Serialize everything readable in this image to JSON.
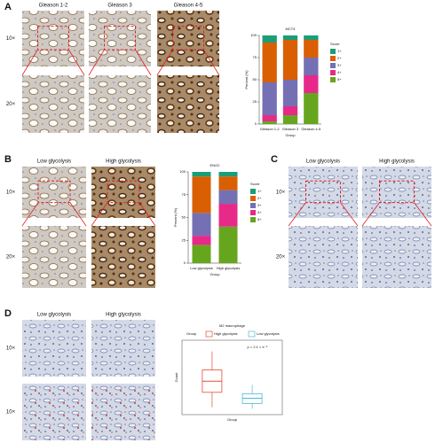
{
  "panels": {
    "A": {
      "label": "A",
      "columns": [
        "Gleason 1-2",
        "Gleason 3",
        "Gleason 4-5"
      ],
      "rows": [
        "10×",
        "20×"
      ]
    },
    "B": {
      "label": "B",
      "columns": [
        "Low glycolysis",
        "High glycolysis"
      ],
      "rows": [
        "10×",
        "20×"
      ]
    },
    "C": {
      "label": "C",
      "columns": [
        "Low glycolysis",
        "High glycolysis"
      ],
      "rows": [
        "10×",
        "20×"
      ]
    },
    "D": {
      "label": "D",
      "columns": [
        "Low glycolysis",
        "High glycolysis"
      ],
      "rows": [
        "10×",
        "10×"
      ]
    }
  },
  "chart_data": [
    {
      "type": "stacked_bar",
      "title": "MCT4",
      "x_label": "Group",
      "y_label": "Percent (%)",
      "categories": [
        "Gleason 1-2",
        "Gleason 3",
        "Gleason 4-5"
      ],
      "ylim": [
        0,
        100
      ],
      "yticks": [
        0,
        25,
        50,
        75,
        100
      ],
      "legend_title": "Score",
      "series": [
        {
          "name": "1+",
          "color": "#1b9e77",
          "values": [
            8,
            5,
            5
          ]
        },
        {
          "name": "2+",
          "color": "#d95f02",
          "values": [
            45,
            45,
            20
          ]
        },
        {
          "name": "3+",
          "color": "#7570b3",
          "values": [
            37,
            30,
            20
          ]
        },
        {
          "name": "4+",
          "color": "#e7298a",
          "values": [
            7,
            10,
            20
          ]
        },
        {
          "name": "5+",
          "color": "#66a61e",
          "values": [
            3,
            10,
            35
          ]
        }
      ]
    },
    {
      "type": "stacked_bar",
      "title": "ENO2",
      "x_label": "Group",
      "y_label": "Percent (%)",
      "categories": [
        "Low glycolysis",
        "High glycolysis"
      ],
      "ylim": [
        0,
        100
      ],
      "yticks": [
        0,
        25,
        50,
        75,
        100
      ],
      "legend_title": "Score",
      "series": [
        {
          "name": "1+",
          "color": "#1b9e77",
          "values": [
            5,
            5
          ]
        },
        {
          "name": "2+",
          "color": "#d95f02",
          "values": [
            40,
            15
          ]
        },
        {
          "name": "3+",
          "color": "#7570b3",
          "values": [
            25,
            15
          ]
        },
        {
          "name": "4+",
          "color": "#e7298a",
          "values": [
            10,
            25
          ]
        },
        {
          "name": "5+",
          "color": "#66a61e",
          "values": [
            20,
            40
          ]
        }
      ]
    },
    {
      "type": "box",
      "title": "M2 macrophage",
      "x_label": "Group",
      "y_label": "Count",
      "legend_title": "Group",
      "annotation": "p = 2.1 × e⁻⁶",
      "ylim": [
        0,
        100
      ],
      "series": [
        {
          "name": "High glycolysis",
          "color": "#e64b35",
          "stats": {
            "min": 10,
            "q1": 30,
            "median": 45,
            "q3": 60,
            "max": 85
          }
        },
        {
          "name": "Low glycolysis",
          "color": "#4dbbd5",
          "stats": {
            "min": 8,
            "q1": 15,
            "median": 22,
            "q3": 28,
            "max": 40
          }
        }
      ]
    }
  ]
}
